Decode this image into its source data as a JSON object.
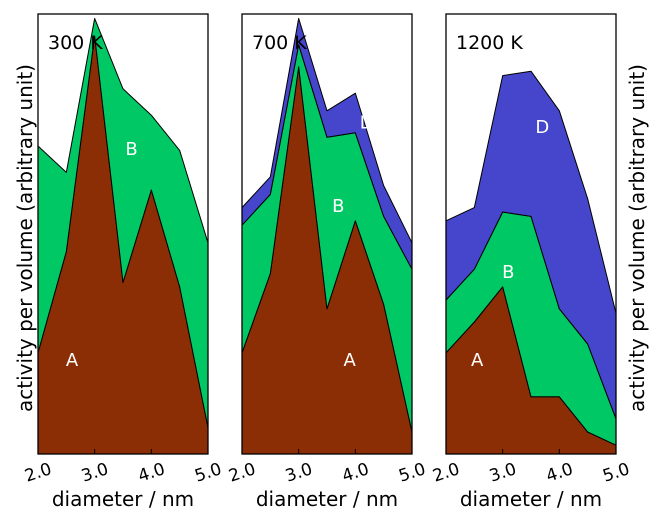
{
  "ylabel": "activity per volume (arbitrary unit)",
  "xlabel": "diameter / nm",
  "colors": {
    "A": "#8c2e05",
    "B": "#00c864",
    "D": "#4646cc"
  },
  "chart_data": [
    {
      "type": "area",
      "stacked": true,
      "title": "300 K",
      "x": [
        2.0,
        2.5,
        3.0,
        3.5,
        4.0,
        4.5,
        5.0
      ],
      "xticks": [
        "2.0",
        "3.0",
        "4.0",
        "5.0"
      ],
      "xlim": [
        2.0,
        5.0
      ],
      "ylim": [
        0,
        1.0
      ],
      "series": [
        {
          "name": "A",
          "values": [
            0.23,
            0.46,
            0.95,
            0.39,
            0.6,
            0.38,
            0.06
          ]
        },
        {
          "name": "B",
          "values": [
            0.47,
            0.18,
            0.04,
            0.44,
            0.17,
            0.31,
            0.42
          ]
        }
      ],
      "region_labels": [
        {
          "text": "A",
          "x": 2.6,
          "y": 0.2
        },
        {
          "text": "B",
          "x": 3.65,
          "y": 0.68
        }
      ]
    },
    {
      "type": "area",
      "stacked": true,
      "title": "700 K",
      "x": [
        2.0,
        2.5,
        3.0,
        3.5,
        4.0,
        4.5,
        5.0
      ],
      "xticks": [
        "2.0",
        "3.0",
        "4.0",
        "5.0"
      ],
      "xlim": [
        2.0,
        5.0
      ],
      "ylim": [
        0,
        1.0
      ],
      "series": [
        {
          "name": "A",
          "values": [
            0.23,
            0.41,
            0.88,
            0.33,
            0.53,
            0.34,
            0.05
          ]
        },
        {
          "name": "B",
          "values": [
            0.29,
            0.18,
            0.05,
            0.39,
            0.2,
            0.2,
            0.37
          ]
        },
        {
          "name": "D",
          "values": [
            0.04,
            0.04,
            0.06,
            0.06,
            0.09,
            0.07,
            0.06
          ]
        }
      ],
      "region_labels": [
        {
          "text": "A",
          "x": 3.9,
          "y": 0.2
        },
        {
          "text": "B",
          "x": 3.7,
          "y": 0.55
        },
        {
          "text": "D",
          "x": 4.2,
          "y": 0.74
        }
      ]
    },
    {
      "type": "area",
      "stacked": true,
      "title": "1200 K",
      "x": [
        2.0,
        2.5,
        3.0,
        3.5,
        4.0,
        4.5,
        5.0
      ],
      "xticks": [
        "2.0",
        "3.0",
        "4.0",
        "5.0"
      ],
      "xlim": [
        2.0,
        5.0
      ],
      "ylim": [
        0,
        1.0
      ],
      "series": [
        {
          "name": "A",
          "values": [
            0.23,
            0.3,
            0.38,
            0.13,
            0.13,
            0.05,
            0.02
          ]
        },
        {
          "name": "B",
          "values": [
            0.12,
            0.12,
            0.17,
            0.41,
            0.2,
            0.2,
            0.06
          ]
        },
        {
          "name": "D",
          "values": [
            0.18,
            0.14,
            0.31,
            0.33,
            0.45,
            0.33,
            0.24
          ]
        }
      ],
      "region_labels": [
        {
          "text": "A",
          "x": 2.55,
          "y": 0.2
        },
        {
          "text": "B",
          "x": 3.1,
          "y": 0.4
        },
        {
          "text": "D",
          "x": 3.7,
          "y": 0.73
        }
      ]
    }
  ]
}
